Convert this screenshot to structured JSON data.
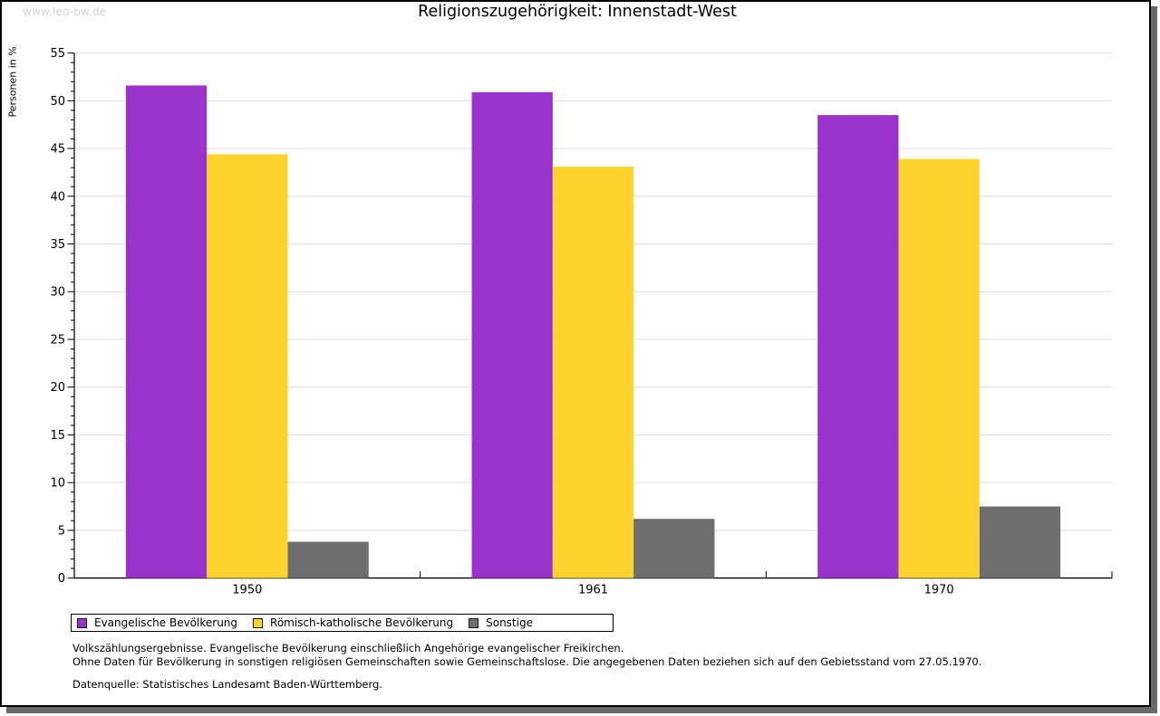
{
  "watermark": "www.leo-bw.de",
  "title": "Religionszugehörigkeit: Innenstadt-West",
  "chart_data": {
    "type": "bar",
    "title": "Religionszugehörigkeit: Innenstadt-West",
    "categories": [
      "1950",
      "1961",
      "1970"
    ],
    "series": [
      {
        "name": "Evangelische Bevölkerung",
        "color": "#9933CC",
        "values": [
          51.6,
          50.9,
          48.5
        ]
      },
      {
        "name": "Römisch-katholische Bevölkerung",
        "color": "#FDD42E",
        "values": [
          44.4,
          43.1,
          43.9
        ]
      },
      {
        "name": "Sonstige",
        "color": "#6E6E6E",
        "values": [
          3.8,
          6.2,
          7.5
        ]
      }
    ],
    "xlabel": "",
    "ylabel": "Personen in %",
    "ylim": [
      0,
      55
    ],
    "y_major_step": 5,
    "y_minor_step": 1,
    "grid": true,
    "legend_position": "bottom"
  },
  "legend": {
    "entries": [
      "Evangelische Bevölkerung",
      "Römisch-katholische Bevölkerung",
      "Sonstige"
    ]
  },
  "footnotes": {
    "line1": "Volkszählungsergebnisse. Evangelische Bevölkerung einschließlich Angehörige evangelischer Freikirchen.",
    "line2": "Ohne Daten für Bevölkerung in sonstigen religiösen Gemeinschaften sowie Gemeinschaftslose. Die angegebenen Daten beziehen sich auf den Gebietsstand vom 27.05.1970.",
    "source": "Datenquelle: Statistisches Landesamt Baden-Württemberg."
  },
  "colors": {
    "grid": "#dcdcdc",
    "axis": "#000000",
    "watermark": "#d3d3d3",
    "frame_shadow": "#6a6a6a"
  }
}
